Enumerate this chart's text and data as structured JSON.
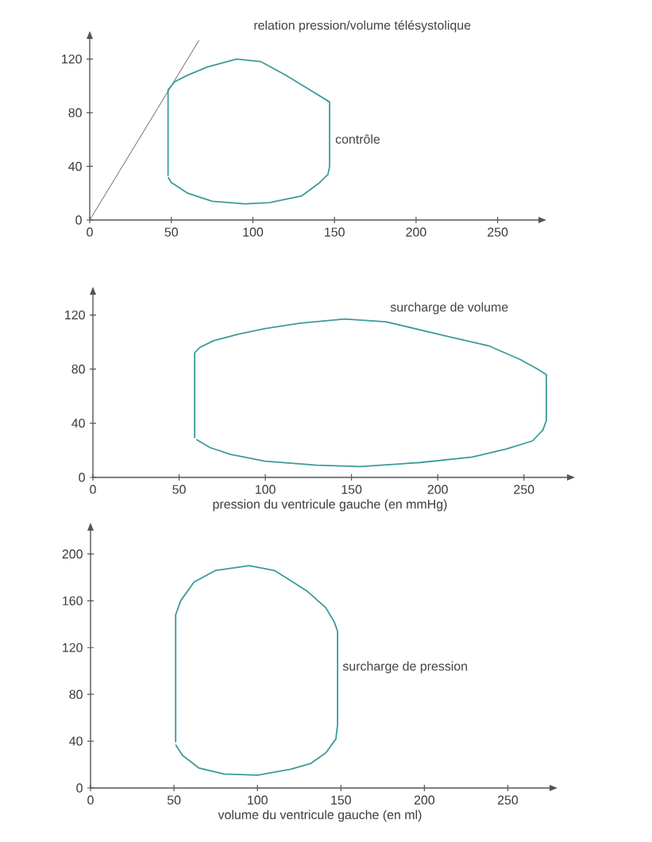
{
  "chart_data": [
    {
      "type": "line",
      "xlim": [
        0,
        275
      ],
      "ylim": [
        0,
        135
      ],
      "xticks": [
        0,
        50,
        100,
        150,
        200,
        250
      ],
      "yticks": [
        0,
        40,
        80,
        120
      ],
      "series": [
        {
          "name": "relation pression/volume télésystolique",
          "color": "#555555",
          "x": [
            0,
            67
          ],
          "values": [
            0,
            134
          ]
        },
        {
          "name": "contrôle",
          "color": "#3d9a9b",
          "x": [
            48,
            48,
            52,
            60,
            72,
            90,
            105,
            120,
            135,
            147,
            147,
            146,
            141,
            130,
            110,
            95,
            75,
            60,
            50,
            48
          ],
          "values": [
            33,
            97,
            103,
            108,
            114,
            120,
            118,
            108,
            97,
            88,
            40,
            34,
            28,
            18,
            13,
            12,
            14,
            20,
            28,
            32
          ]
        }
      ]
    },
    {
      "type": "line",
      "xlim": [
        0,
        275
      ],
      "ylim": [
        0,
        135
      ],
      "xticks": [
        0,
        50,
        100,
        150,
        200,
        250
      ],
      "yticks": [
        0,
        40,
        80,
        120
      ],
      "xlabel": "pression du ventricule gauche (en mmHg)",
      "series": [
        {
          "name": "surcharge de volume",
          "color": "#3d9a9b",
          "x": [
            59,
            59,
            62,
            70,
            85,
            100,
            120,
            146,
            170,
            203,
            230,
            248,
            258,
            263,
            263,
            261,
            255,
            240,
            220,
            190,
            155,
            130,
            100,
            80,
            68,
            60
          ],
          "values": [
            29,
            92,
            96,
            101,
            106,
            110,
            114,
            117,
            115,
            105,
            97,
            87,
            80,
            76,
            42,
            35,
            27,
            21,
            15,
            11,
            8,
            9,
            12,
            17,
            22,
            28
          ]
        }
      ]
    },
    {
      "type": "line",
      "xlim": [
        0,
        275
      ],
      "ylim": [
        0,
        220
      ],
      "xticks": [
        0,
        50,
        100,
        150,
        200,
        250
      ],
      "yticks": [
        0,
        40,
        80,
        120,
        160,
        200
      ],
      "xlabel": "volume du ventricule gauche (en ml)",
      "series": [
        {
          "name": "surcharge de pression",
          "color": "#3d9a9b",
          "x": [
            51,
            51,
            54,
            62,
            75,
            95,
            110,
            119,
            130,
            141,
            146,
            148,
            148,
            147,
            141,
            132,
            120,
            100,
            80,
            65,
            55,
            51
          ],
          "values": [
            39,
            148,
            160,
            176,
            186,
            190,
            186,
            178,
            168,
            154,
            142,
            134,
            54,
            42,
            30,
            21,
            16,
            11,
            12,
            17,
            28,
            37
          ]
        }
      ]
    }
  ]
}
